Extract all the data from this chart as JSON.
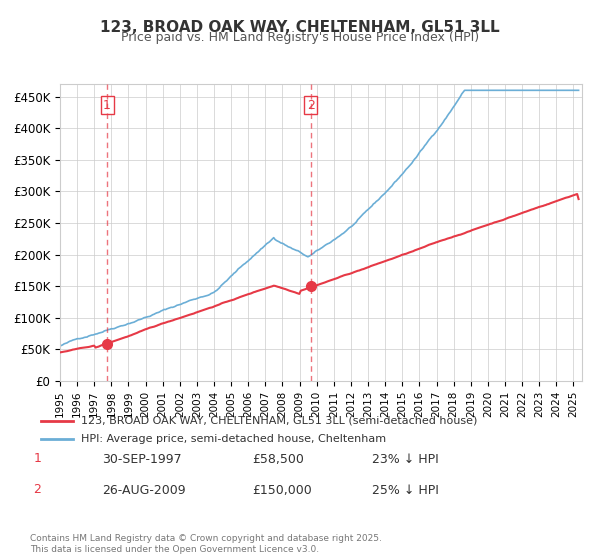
{
  "title_line1": "123, BROAD OAK WAY, CHELTENHAM, GL51 3LL",
  "title_line2": "Price paid vs. HM Land Registry's House Price Index (HPI)",
  "ylabel": "",
  "xlim_start": 1995.0,
  "xlim_end": 2025.5,
  "ylim_bottom": 0,
  "ylim_top": 470000,
  "yticks": [
    0,
    50000,
    100000,
    150000,
    200000,
    250000,
    300000,
    350000,
    400000,
    450000
  ],
  "ytick_labels": [
    "£0",
    "£50K",
    "£100K",
    "£150K",
    "£200K",
    "£250K",
    "£300K",
    "£350K",
    "£400K",
    "£450K"
  ],
  "purchase1_date": 1997.75,
  "purchase1_price": 58500,
  "purchase1_label": "1",
  "purchase2_date": 2009.65,
  "purchase2_price": 150000,
  "purchase2_label": "2",
  "hpi_color": "#6baed6",
  "price_color": "#e63946",
  "legend_line1": "123, BROAD OAK WAY, CHELTENHAM, GL51 3LL (semi-detached house)",
  "legend_line2": "HPI: Average price, semi-detached house, Cheltenham",
  "table_row1": [
    "1",
    "30-SEP-1997",
    "£58,500",
    "23% ↓ HPI"
  ],
  "table_row2": [
    "2",
    "26-AUG-2009",
    "£150,000",
    "25% ↓ HPI"
  ],
  "footer": "Contains HM Land Registry data © Crown copyright and database right 2025.\nThis data is licensed under the Open Government Licence v3.0.",
  "background_color": "#ffffff",
  "grid_color": "#cccccc"
}
